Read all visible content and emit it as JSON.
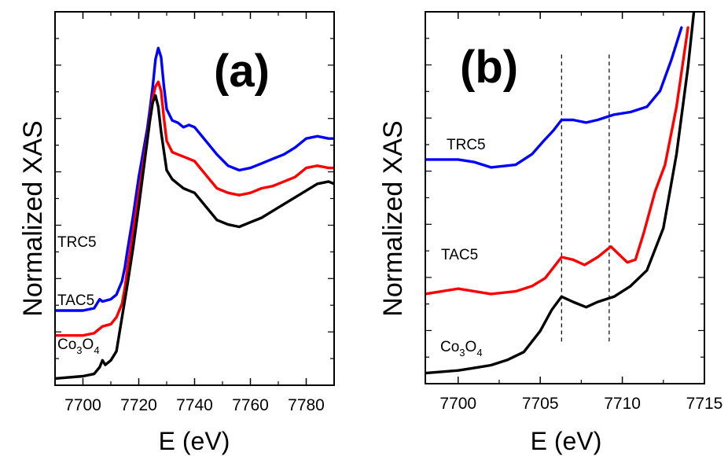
{
  "colors": {
    "TRC5": "#0000ff",
    "TAC5": "#ff0000",
    "Co3O4": "#000000"
  },
  "chart_data": [
    {
      "type": "line",
      "title": "(a)",
      "xlabel": "E (eV)",
      "ylabel": "Normalized XAS",
      "xlim": [
        7690,
        7790
      ],
      "xticks": [
        7700,
        7720,
        7740,
        7760,
        7780
      ],
      "y_tick_labels": false,
      "grid": false,
      "legend": "labels beside curves on left",
      "series": [
        {
          "name": "TRC5",
          "label": "TRC5",
          "color": "#0000ff",
          "x": [
            7690,
            7700,
            7704,
            7706,
            7707,
            7710,
            7712,
            7714,
            7715,
            7716,
            7718,
            7720,
            7721,
            7722,
            7723,
            7724,
            7725,
            7726,
            7727,
            7728,
            7729,
            7730,
            7732,
            7734,
            7736,
            7738,
            7740,
            7744,
            7748,
            7752,
            7756,
            7760,
            7764,
            7768,
            7772,
            7776,
            7780,
            7784,
            7788,
            7790
          ],
          "y": [
            0.03,
            0.03,
            0.04,
            0.08,
            0.07,
            0.08,
            0.1,
            0.16,
            0.22,
            0.3,
            0.45,
            0.62,
            0.69,
            0.76,
            0.83,
            0.92,
            1.02,
            1.14,
            1.19,
            1.15,
            1.02,
            0.92,
            0.87,
            0.86,
            0.84,
            0.85,
            0.84,
            0.78,
            0.72,
            0.67,
            0.65,
            0.66,
            0.68,
            0.7,
            0.72,
            0.75,
            0.79,
            0.8,
            0.79,
            0.79
          ]
        },
        {
          "name": "TAC5",
          "label": "TAC5",
          "color": "#ff0000",
          "x": [
            7690,
            7700,
            7704,
            7706,
            7707,
            7710,
            7712,
            7714,
            7715,
            7716,
            7718,
            7720,
            7721,
            7722,
            7723,
            7724,
            7725,
            7726,
            7727,
            7728,
            7729,
            7730,
            7732,
            7734,
            7736,
            7738,
            7740,
            7744,
            7748,
            7752,
            7756,
            7760,
            7764,
            7768,
            7772,
            7776,
            7780,
            7784,
            7788,
            7790
          ],
          "y": [
            -0.08,
            -0.08,
            -0.07,
            -0.05,
            -0.04,
            -0.03,
            0.0,
            0.06,
            0.13,
            0.22,
            0.38,
            0.55,
            0.63,
            0.71,
            0.79,
            0.88,
            0.97,
            1.02,
            1.04,
            1.0,
            0.88,
            0.78,
            0.73,
            0.72,
            0.71,
            0.7,
            0.69,
            0.63,
            0.57,
            0.55,
            0.54,
            0.55,
            0.57,
            0.58,
            0.6,
            0.62,
            0.66,
            0.67,
            0.66,
            0.66
          ]
        },
        {
          "name": "Co3O4",
          "label": "Co3O4",
          "color": "#000000",
          "x": [
            7690,
            7700,
            7704,
            7706,
            7707,
            7708,
            7710,
            7712,
            7714,
            7716,
            7718,
            7720,
            7722,
            7724,
            7725,
            7726,
            7727,
            7728,
            7730,
            7732,
            7734,
            7736,
            7738,
            7740,
            7744,
            7748,
            7752,
            7756,
            7760,
            7764,
            7768,
            7772,
            7776,
            7780,
            7784,
            7788,
            7790
          ],
          "y": [
            -0.27,
            -0.26,
            -0.25,
            -0.22,
            -0.19,
            -0.21,
            -0.19,
            -0.15,
            0.0,
            0.15,
            0.31,
            0.49,
            0.68,
            0.87,
            0.95,
            0.98,
            0.93,
            0.82,
            0.65,
            0.61,
            0.59,
            0.57,
            0.56,
            0.55,
            0.49,
            0.43,
            0.41,
            0.4,
            0.42,
            0.44,
            0.47,
            0.5,
            0.53,
            0.56,
            0.59,
            0.6,
            0.59
          ]
        }
      ]
    },
    {
      "type": "line",
      "title": "(b)",
      "xlabel": "E (eV)",
      "ylabel": "Normalized XAS",
      "xlim": [
        7698,
        7715
      ],
      "xticks": [
        7700,
        7705,
        7710,
        7715
      ],
      "y_tick_labels": false,
      "grid": false,
      "legend": "labels beside curves on left",
      "reference_lines_x": [
        7706.3,
        7709.2
      ],
      "series": [
        {
          "name": "TRC5",
          "label": "TRC5",
          "color": "#0000ff",
          "x": [
            7698,
            7700,
            7701,
            7702,
            7703.5,
            7704.5,
            7705.2,
            7705.8,
            7706.3,
            7707,
            7707.8,
            7708.5,
            7709.5,
            7710.5,
            7711.5,
            7712.3,
            7713,
            7713.6
          ],
          "y": [
            0.6,
            0.6,
            0.59,
            0.57,
            0.58,
            0.62,
            0.67,
            0.71,
            0.75,
            0.75,
            0.74,
            0.75,
            0.77,
            0.78,
            0.8,
            0.86,
            0.98,
            1.1
          ]
        },
        {
          "name": "TAC5",
          "label": "TAC5",
          "color": "#ff0000",
          "x": [
            7698,
            7699,
            7700,
            7701,
            7702,
            7703.5,
            7704.5,
            7705.3,
            7706.3,
            7707,
            7707.7,
            7708.5,
            7709.3,
            7709.8,
            7710.3,
            7710.8,
            7711.3,
            7712,
            7712.6,
            7713.3,
            7714
          ],
          "y": [
            0.09,
            0.1,
            0.11,
            0.1,
            0.09,
            0.1,
            0.12,
            0.15,
            0.23,
            0.22,
            0.2,
            0.23,
            0.27,
            0.24,
            0.21,
            0.22,
            0.32,
            0.48,
            0.58,
            0.8,
            1.1
          ]
        },
        {
          "name": "Co3O4",
          "label": "Co3O4",
          "color": "#000000",
          "x": [
            7698,
            7700,
            7701,
            7702,
            7703,
            7704,
            7705,
            7705.7,
            7706.3,
            7707,
            7707.8,
            7708.5,
            7709.5,
            7710.5,
            7711.5,
            7712.5,
            7713.3,
            7714,
            7714.6
          ],
          "y": [
            -0.21,
            -0.2,
            -0.19,
            -0.18,
            -0.16,
            -0.13,
            -0.05,
            0.03,
            0.08,
            0.06,
            0.04,
            0.06,
            0.08,
            0.12,
            0.18,
            0.34,
            0.62,
            0.95,
            1.3
          ]
        }
      ]
    }
  ]
}
